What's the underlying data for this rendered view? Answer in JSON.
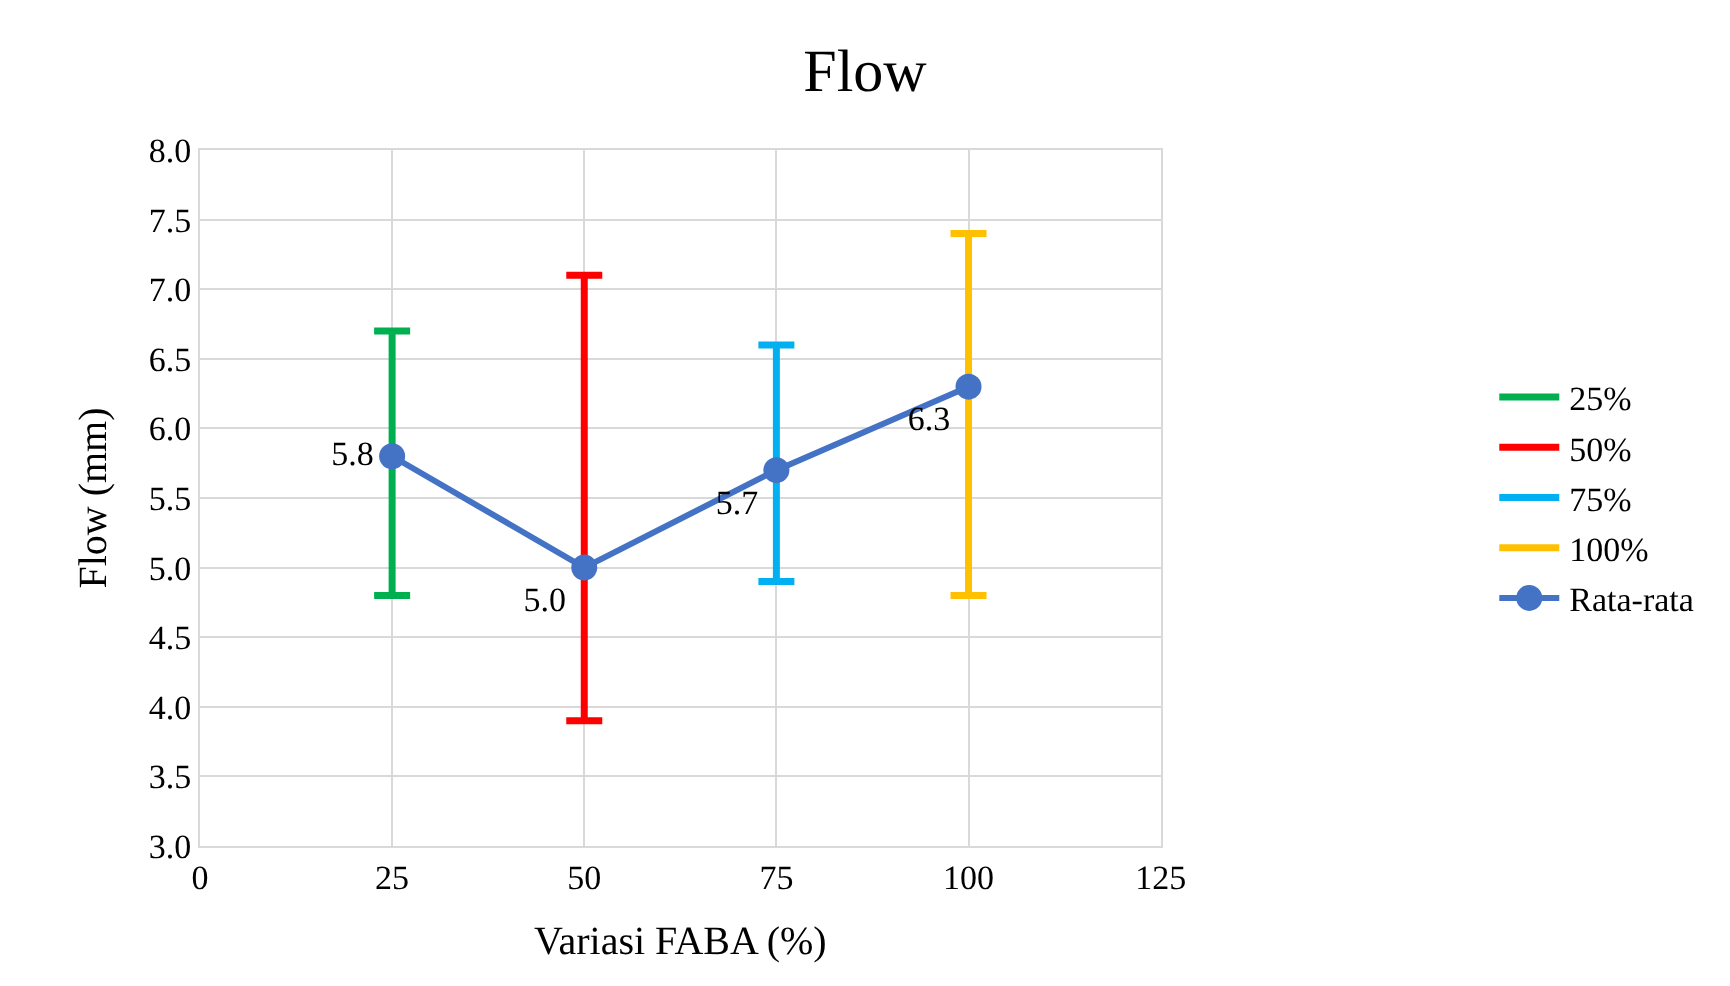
{
  "chart_data": {
    "type": "line",
    "title": "Flow",
    "xlabel": "Variasi FABA (%)",
    "ylabel": "Flow (mm)",
    "xlim": [
      0,
      125
    ],
    "xticks": [
      0,
      25,
      50,
      75,
      100,
      125
    ],
    "ylim": [
      3,
      8
    ],
    "yticks": [
      {
        "value": 3,
        "label": "3.0"
      },
      {
        "value": 3.5,
        "label": "3.5"
      },
      {
        "value": 4,
        "label": "4.0"
      },
      {
        "value": 4.5,
        "label": "4.5"
      },
      {
        "value": 5,
        "label": "5.0"
      },
      {
        "value": 5.5,
        "label": "5.5"
      },
      {
        "value": 6,
        "label": "6.0"
      },
      {
        "value": 6.5,
        "label": "6.5"
      },
      {
        "value": 7,
        "label": "7.0"
      },
      {
        "value": 7.5,
        "label": "7.5"
      },
      {
        "value": 8,
        "label": "8.0"
      }
    ],
    "grid": true,
    "legend": "right",
    "series": [
      {
        "name": "25%",
        "marker": "none",
        "color": "#00b050",
        "x": [
          25,
          25
        ],
        "values": [
          4.8,
          6.7
        ],
        "errors": [
          0,
          0
        ]
      },
      {
        "name": "50%",
        "marker": "none",
        "color": "#ff0000",
        "x": [
          50,
          50
        ],
        "values": [
          3.9,
          7.1
        ],
        "errors": [
          0,
          0
        ]
      },
      {
        "name": "75%",
        "marker": "none",
        "color": "#00b0f0",
        "x": [
          75,
          75
        ],
        "values": [
          4.9,
          6.6
        ],
        "errors": [
          0,
          0
        ]
      },
      {
        "name": "100%",
        "marker": "none",
        "color": "#ffc000",
        "x": [
          100,
          100
        ],
        "values": [
          4.8,
          7.4
        ],
        "errors": [
          0,
          0
        ]
      },
      {
        "name": "Rata-rata",
        "marker": "circle",
        "color": "#4472c4",
        "x": [
          25,
          50,
          75,
          100
        ],
        "values": [
          5.8,
          5.0,
          5.7,
          6.3
        ],
        "value_labels": [
          "5.8",
          "5.0",
          "5.7",
          "6.3"
        ]
      }
    ]
  }
}
